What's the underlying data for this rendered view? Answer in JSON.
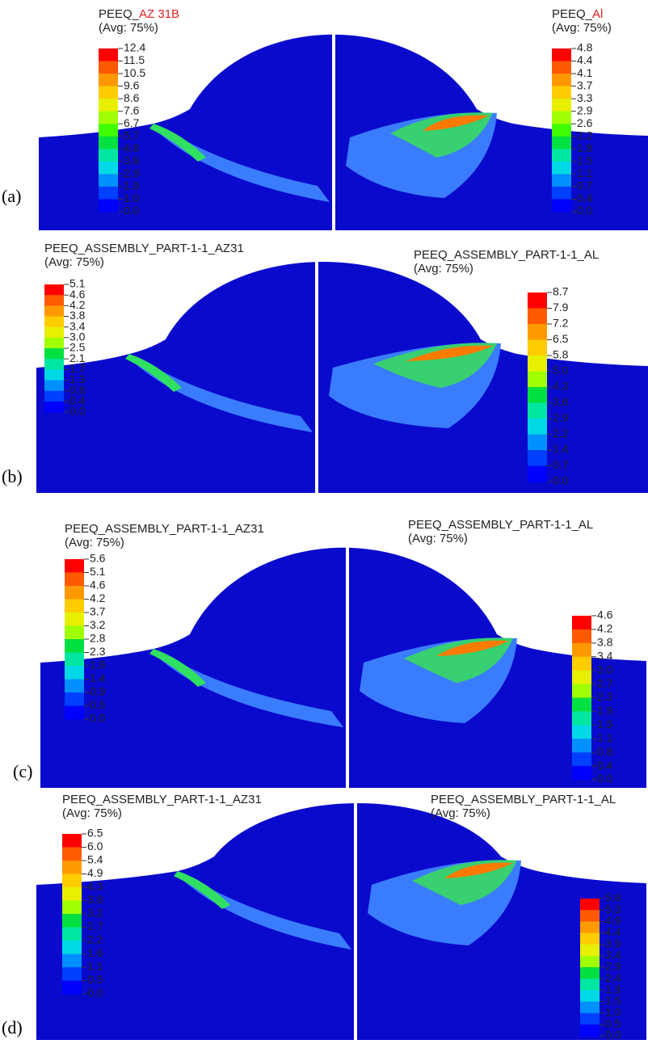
{
  "panels": [
    {
      "label": "(a)",
      "left": {
        "title": "PEEQ_",
        "title_highlight": "AZ 31B",
        "highlight_color": "#e02020",
        "avg": "(Avg: 75%)",
        "ticks": [
          "12.4",
          "11.5",
          "10.5",
          "9.6",
          "8.6",
          "7.6",
          "6.7",
          "5.7",
          "4.8",
          "3.8",
          "2.9",
          "1.9",
          "1.0",
          "0.0"
        ]
      },
      "right": {
        "title": "PEEQ_",
        "title_highlight": "Al",
        "highlight_color": "#e02020",
        "avg": "(Avg: 75%)",
        "ticks": [
          "4.8",
          "4.4",
          "4.1",
          "3.7",
          "3.3",
          "2.9",
          "2.6",
          "2.2",
          "1.8",
          "1.5",
          "1.1",
          "0.7",
          "0.4",
          "0.0"
        ]
      }
    },
    {
      "label": "(b)",
      "left": {
        "title": "PEEQ_ASSEMBLY_PART-1-1_AZ31",
        "avg": "(Avg: 75%)",
        "ticks": [
          "5.1",
          "4.6",
          "4.2",
          "3.8",
          "3.4",
          "3.0",
          "2.5",
          "2.1",
          "1.7",
          "1.3",
          "0.8",
          "0.4",
          "0.0"
        ]
      },
      "right": {
        "title": "PEEQ_ASSEMBLY_PART-1-1_AL",
        "avg": "(Avg: 75%)",
        "ticks": [
          "8.7",
          "7.9",
          "7.2",
          "6.5",
          "5.8",
          "5.0",
          "4.3",
          "3.6",
          "2.9",
          "2.2",
          "1.4",
          "0.7",
          "0.0"
        ]
      }
    },
    {
      "label": "(c)",
      "left": {
        "title": "PEEQ_ASSEMBLY_PART-1-1_AZ31",
        "avg": "(Avg: 75%)",
        "ticks": [
          "5.6",
          "5.1",
          "4.6",
          "4.2",
          "3.7",
          "3.2",
          "2.8",
          "2.3",
          "1.9",
          "1.4",
          "0.9",
          "0.5",
          "0.0"
        ]
      },
      "right": {
        "title": "PEEQ_ASSEMBLY_PART-1-1_AL",
        "avg": "(Avg: 75%)",
        "ticks": [
          "4.6",
          "4.2",
          "3.8",
          "3.4",
          "3.0",
          "2.7",
          "2.3",
          "1.9",
          "1.5",
          "1.1",
          "0.8",
          "0.4",
          "0.0"
        ]
      }
    },
    {
      "label": "(d)",
      "left": {
        "title": "PEEQ_ASSEMBLY_PART-1-1_AZ31",
        "avg": "(Avg: 75%)",
        "ticks": [
          "6.5",
          "6.0",
          "5.4",
          "4.9",
          "4.3",
          "3.8",
          "3.2",
          "2.7",
          "2.2",
          "1.6",
          "1.1",
          "0.5",
          "0.0"
        ]
      },
      "right": {
        "title": "PEEQ_ASSEMBLY_PART-1-1_AL",
        "avg": "(Avg: 75%)",
        "ticks": [
          "5.8",
          "5.3",
          "4.9",
          "4.4",
          "3.9",
          "3.4",
          "2.9",
          "2.4",
          "1.9",
          "1.5",
          "1.0",
          "0.5",
          "0.0"
        ]
      }
    }
  ]
}
